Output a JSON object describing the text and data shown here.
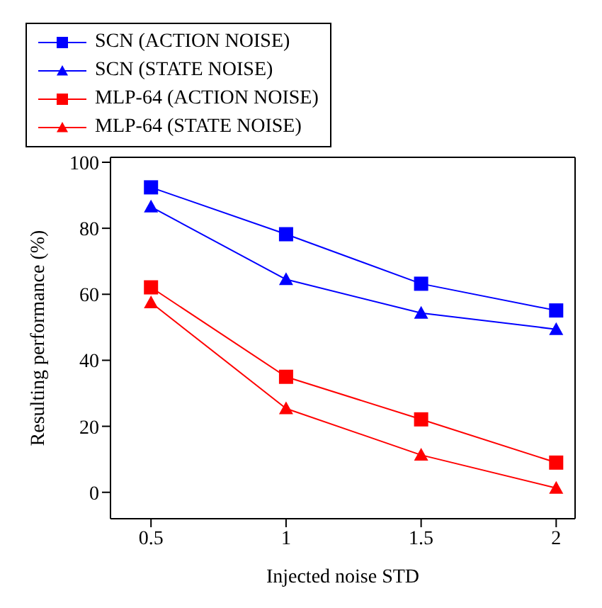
{
  "chart_data": {
    "type": "line",
    "xlabel": "Injected noise STD",
    "ylabel": "Resulting performance (%)",
    "x": [
      0.5,
      1,
      1.5,
      2
    ],
    "xlim": [
      0.35,
      2.07
    ],
    "xticks": [
      0.5,
      1,
      1.5,
      2
    ],
    "ylim": [
      -8,
      101.5
    ],
    "yticks": [
      0,
      20,
      40,
      60,
      80,
      100
    ],
    "grid": false,
    "legend": "top",
    "line_style": "solid",
    "series": [
      {
        "name": "SCN (ACTION NOISE)",
        "color": "#0000ff",
        "marker": "square",
        "values": [
          92.4,
          78.2,
          63.2,
          55.1
        ]
      },
      {
        "name": "SCN (STATE NOISE)",
        "color": "#0000ff",
        "marker": "triangle",
        "values": [
          86.5,
          64.5,
          54.3,
          49.4
        ]
      },
      {
        "name": "MLP-64 (ACTION NOISE)",
        "color": "#ff0000",
        "marker": "square",
        "values": [
          62.1,
          35,
          22.1,
          9
        ]
      },
      {
        "name": "MLP-64 (STATE NOISE)",
        "color": "#ff0000",
        "marker": "triangle",
        "values": [
          57.5,
          25.4,
          11.3,
          1.3
        ]
      }
    ]
  }
}
